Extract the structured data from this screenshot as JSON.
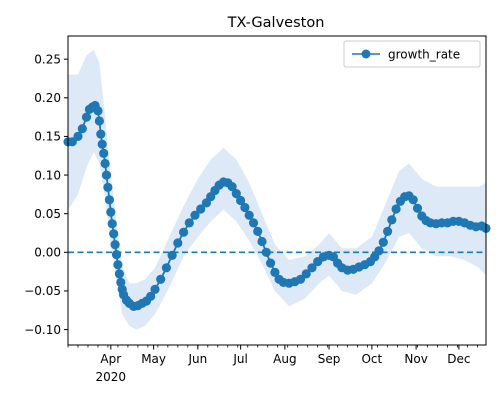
{
  "colors": {
    "series": "#1f77b4",
    "band": "#cfe0f2",
    "background": "#ffffff",
    "axis": "#000000",
    "legend_border": "#cccccc"
  },
  "chart_data": {
    "type": "line",
    "title": "TX-Galveston",
    "xlabel": "",
    "ylabel": "",
    "year_label": "2020",
    "legend": {
      "placement": "top-right",
      "entries": [
        "growth_rate"
      ]
    },
    "grid": false,
    "x_range": [
      "2020-03-02",
      "2020-12-20"
    ],
    "ylim": [
      -0.12,
      0.28
    ],
    "y_ticks": [
      {
        "value": 0.25,
        "label": "0.25"
      },
      {
        "value": 0.2,
        "label": "0.20"
      },
      {
        "value": 0.15,
        "label": "0.15"
      },
      {
        "value": 0.1,
        "label": "0.10"
      },
      {
        "value": 0.05,
        "label": "0.05"
      },
      {
        "value": 0.0,
        "label": "0.00"
      },
      {
        "value": -0.05,
        "label": "−0.05"
      },
      {
        "value": -0.1,
        "label": "−0.10"
      }
    ],
    "x_ticks": [
      {
        "date": "2020-04-01",
        "label": "Apr"
      },
      {
        "date": "2020-05-01",
        "label": "May"
      },
      {
        "date": "2020-06-01",
        "label": "Jun"
      },
      {
        "date": "2020-07-01",
        "label": "Jul"
      },
      {
        "date": "2020-08-01",
        "label": "Aug"
      },
      {
        "date": "2020-09-01",
        "label": "Sep"
      },
      {
        "date": "2020-10-01",
        "label": "Oct"
      },
      {
        "date": "2020-11-01",
        "label": "Nov"
      },
      {
        "date": "2020-12-01",
        "label": "Dec"
      }
    ],
    "reference_line": {
      "y": 0.0,
      "style": "dashed"
    },
    "series": [
      {
        "name": "growth_rate",
        "marker": "circle",
        "points": [
          [
            "2020-03-02",
            0.143
          ],
          [
            "2020-03-05",
            0.143
          ],
          [
            "2020-03-09",
            0.15
          ],
          [
            "2020-03-12",
            0.16
          ],
          [
            "2020-03-15",
            0.175
          ],
          [
            "2020-03-17",
            0.185
          ],
          [
            "2020-03-19",
            0.188
          ],
          [
            "2020-03-21",
            0.19
          ],
          [
            "2020-03-23",
            0.183
          ],
          [
            "2020-03-24",
            0.17
          ],
          [
            "2020-03-25",
            0.153
          ],
          [
            "2020-03-26",
            0.14
          ],
          [
            "2020-03-27",
            0.128
          ],
          [
            "2020-03-28",
            0.115
          ],
          [
            "2020-03-29",
            0.1
          ],
          [
            "2020-03-30",
            0.084
          ],
          [
            "2020-03-31",
            0.068
          ],
          [
            "2020-04-01",
            0.052
          ],
          [
            "2020-04-02",
            0.037
          ],
          [
            "2020-04-03",
            0.024
          ],
          [
            "2020-04-04",
            0.01
          ],
          [
            "2020-04-05",
            -0.003
          ],
          [
            "2020-04-06",
            -0.016
          ],
          [
            "2020-04-07",
            -0.028
          ],
          [
            "2020-04-08",
            -0.039
          ],
          [
            "2020-04-09",
            -0.048
          ],
          [
            "2020-04-10",
            -0.055
          ],
          [
            "2020-04-12",
            -0.062
          ],
          [
            "2020-04-14",
            -0.066
          ],
          [
            "2020-04-17",
            -0.07
          ],
          [
            "2020-04-20",
            -0.069
          ],
          [
            "2020-04-23",
            -0.066
          ],
          [
            "2020-04-26",
            -0.063
          ],
          [
            "2020-04-29",
            -0.057
          ],
          [
            "2020-05-02",
            -0.048
          ],
          [
            "2020-05-06",
            -0.035
          ],
          [
            "2020-05-10",
            -0.02
          ],
          [
            "2020-05-14",
            -0.004
          ],
          [
            "2020-05-18",
            0.012
          ],
          [
            "2020-05-22",
            0.026
          ],
          [
            "2020-05-26",
            0.038
          ],
          [
            "2020-05-30",
            0.048
          ],
          [
            "2020-06-03",
            0.056
          ],
          [
            "2020-06-07",
            0.064
          ],
          [
            "2020-06-10",
            0.072
          ],
          [
            "2020-06-13",
            0.08
          ],
          [
            "2020-06-16",
            0.087
          ],
          [
            "2020-06-19",
            0.091
          ],
          [
            "2020-06-22",
            0.09
          ],
          [
            "2020-06-25",
            0.085
          ],
          [
            "2020-06-28",
            0.076
          ],
          [
            "2020-07-01",
            0.067
          ],
          [
            "2020-07-04",
            0.058
          ],
          [
            "2020-07-07",
            0.048
          ],
          [
            "2020-07-10",
            0.038
          ],
          [
            "2020-07-13",
            0.027
          ],
          [
            "2020-07-16",
            0.014
          ],
          [
            "2020-07-19",
            0.0
          ],
          [
            "2020-07-22",
            -0.014
          ],
          [
            "2020-07-25",
            -0.026
          ],
          [
            "2020-07-28",
            -0.035
          ],
          [
            "2020-07-31",
            -0.039
          ],
          [
            "2020-08-04",
            -0.04
          ],
          [
            "2020-08-08",
            -0.038
          ],
          [
            "2020-08-12",
            -0.035
          ],
          [
            "2020-08-16",
            -0.028
          ],
          [
            "2020-08-20",
            -0.02
          ],
          [
            "2020-08-24",
            -0.012
          ],
          [
            "2020-08-28",
            -0.006
          ],
          [
            "2020-09-01",
            -0.004
          ],
          [
            "2020-09-04",
            -0.006
          ],
          [
            "2020-09-07",
            -0.014
          ],
          [
            "2020-09-10",
            -0.02
          ],
          [
            "2020-09-14",
            -0.023
          ],
          [
            "2020-09-18",
            -0.022
          ],
          [
            "2020-09-22",
            -0.019
          ],
          [
            "2020-09-26",
            -0.016
          ],
          [
            "2020-09-30",
            -0.012
          ],
          [
            "2020-10-03",
            -0.006
          ],
          [
            "2020-10-06",
            0.002
          ],
          [
            "2020-10-09",
            0.013
          ],
          [
            "2020-10-12",
            0.027
          ],
          [
            "2020-10-15",
            0.042
          ],
          [
            "2020-10-18",
            0.056
          ],
          [
            "2020-10-21",
            0.066
          ],
          [
            "2020-10-24",
            0.072
          ],
          [
            "2020-10-27",
            0.073
          ],
          [
            "2020-10-30",
            0.068
          ],
          [
            "2020-11-02",
            0.057
          ],
          [
            "2020-11-05",
            0.047
          ],
          [
            "2020-11-08",
            0.041
          ],
          [
            "2020-11-11",
            0.038
          ],
          [
            "2020-11-15",
            0.037
          ],
          [
            "2020-11-19",
            0.038
          ],
          [
            "2020-11-23",
            0.038
          ],
          [
            "2020-11-27",
            0.04
          ],
          [
            "2020-12-01",
            0.04
          ],
          [
            "2020-12-05",
            0.038
          ],
          [
            "2020-12-09",
            0.035
          ],
          [
            "2020-12-13",
            0.033
          ],
          [
            "2020-12-17",
            0.034
          ],
          [
            "2020-12-20",
            0.031
          ]
        ]
      }
    ],
    "confidence_band": [
      [
        "2020-03-02",
        0.055,
        0.23
      ],
      [
        "2020-03-09",
        0.075,
        0.23
      ],
      [
        "2020-03-15",
        0.11,
        0.255
      ],
      [
        "2020-03-20",
        0.13,
        0.262
      ],
      [
        "2020-03-24",
        0.115,
        0.245
      ],
      [
        "2020-03-28",
        0.07,
        0.175
      ],
      [
        "2020-04-01",
        0.01,
        0.1
      ],
      [
        "2020-04-05",
        -0.035,
        0.04
      ],
      [
        "2020-04-09",
        -0.08,
        -0.018
      ],
      [
        "2020-04-14",
        -0.095,
        -0.04
      ],
      [
        "2020-04-19",
        -0.1,
        -0.04
      ],
      [
        "2020-04-25",
        -0.095,
        -0.035
      ],
      [
        "2020-05-02",
        -0.08,
        -0.02
      ],
      [
        "2020-05-12",
        -0.045,
        0.02
      ],
      [
        "2020-05-22",
        -0.005,
        0.06
      ],
      [
        "2020-06-01",
        0.02,
        0.095
      ],
      [
        "2020-06-10",
        0.04,
        0.12
      ],
      [
        "2020-06-19",
        0.055,
        0.135
      ],
      [
        "2020-06-28",
        0.04,
        0.12
      ],
      [
        "2020-07-07",
        0.015,
        0.09
      ],
      [
        "2020-07-16",
        -0.015,
        0.05
      ],
      [
        "2020-07-25",
        -0.05,
        0.01
      ],
      [
        "2020-08-04",
        -0.07,
        -0.01
      ],
      [
        "2020-08-15",
        -0.06,
        -0.005
      ],
      [
        "2020-08-25",
        -0.04,
        0.01
      ],
      [
        "2020-09-01",
        -0.03,
        0.025
      ],
      [
        "2020-09-10",
        -0.05,
        0.005
      ],
      [
        "2020-09-20",
        -0.055,
        0.005
      ],
      [
        "2020-10-01",
        -0.04,
        0.02
      ],
      [
        "2020-10-10",
        -0.015,
        0.06
      ],
      [
        "2020-10-20",
        0.02,
        0.105
      ],
      [
        "2020-10-27",
        0.025,
        0.115
      ],
      [
        "2020-11-05",
        0.005,
        0.095
      ],
      [
        "2020-11-15",
        -0.005,
        0.085
      ],
      [
        "2020-11-25",
        -0.005,
        0.085
      ],
      [
        "2020-12-05",
        -0.01,
        0.085
      ],
      [
        "2020-12-15",
        -0.02,
        0.085
      ],
      [
        "2020-12-20",
        -0.03,
        0.09
      ]
    ]
  }
}
